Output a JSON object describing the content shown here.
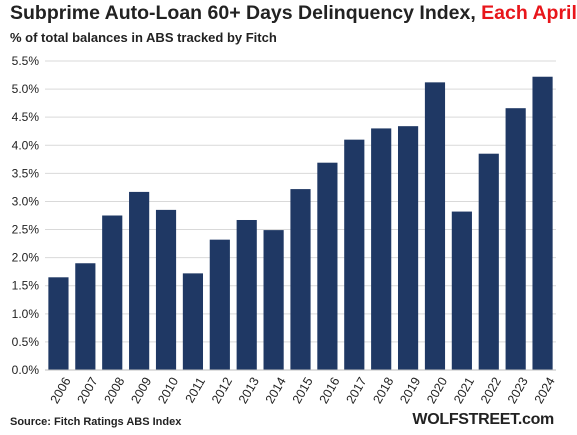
{
  "header": {
    "title_main": "Subprime Auto-Loan 60+ Days Delinquency Index, ",
    "title_highlight": "Each April",
    "subtitle": "% of total balances in ABS tracked by Fitch"
  },
  "footer": {
    "source": "Source: Fitch Ratings ABS Index",
    "brand": "WOLFSTREET.com"
  },
  "colors": {
    "bar": "#1f3864",
    "highlight": "#e8161b",
    "grid": "#d9d9d9",
    "axis_text": "#222222"
  },
  "chart_data": {
    "type": "bar",
    "title": "Subprime Auto-Loan 60+ Days Delinquency Index, Each April",
    "subtitle": "% of total balances in ABS tracked by Fitch",
    "categories": [
      "2006",
      "2007",
      "2008",
      "2009",
      "2010",
      "2011",
      "2012",
      "2013",
      "2014",
      "2015",
      "2016",
      "2017",
      "2018",
      "2019",
      "2020",
      "2021",
      "2022",
      "2023",
      "2024"
    ],
    "values": [
      1.65,
      1.9,
      2.75,
      3.17,
      2.85,
      1.72,
      2.32,
      2.67,
      2.49,
      3.22,
      3.69,
      4.1,
      4.3,
      4.34,
      5.12,
      2.82,
      3.85,
      4.66,
      5.22
    ],
    "ylim": [
      0,
      5.5
    ],
    "yticks": [
      "0.0%",
      "0.5%",
      "1.0%",
      "1.5%",
      "2.0%",
      "2.5%",
      "3.0%",
      "3.5%",
      "4.0%",
      "4.5%",
      "5.0%",
      "5.5%"
    ],
    "grid": true,
    "legend": "none"
  }
}
